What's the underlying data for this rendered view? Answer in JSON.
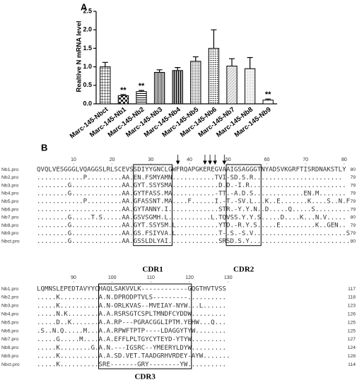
{
  "chart_data": {
    "type": "bar",
    "panel_label": "A",
    "y_label": "Realtive N mRNA level",
    "categories": [
      "Marc-145-Nbct",
      "Marc-145-Nb1",
      "Marc-145-Nb2",
      "Marc-145-Nb3",
      "Marc-145-Nb4",
      "Marc-145-Nb5",
      "Marc-145-Nb6",
      "Marc-145-Nb7",
      "Marc-145-Nb8",
      "Marc-145-Nb9"
    ],
    "values": [
      1.0,
      0.22,
      0.33,
      0.85,
      0.9,
      1.15,
      1.5,
      1.02,
      0.95,
      0.1
    ],
    "errors": [
      0.12,
      0.03,
      0.03,
      0.07,
      0.08,
      0.12,
      0.5,
      0.2,
      0.3,
      0.03
    ],
    "annotations": [
      {
        "text": "**",
        "category": "Marc-145-Nb1"
      },
      {
        "text": "**",
        "category": "Marc-145-Nb2"
      },
      {
        "text": "**",
        "category": "Marc-145-Nb9"
      }
    ],
    "ylim": [
      0,
      2.5
    ],
    "yticks": [
      {
        "value": 0,
        "label": "0.0"
      },
      {
        "value": 0.5,
        "label": "0.5"
      },
      {
        "value": 1,
        "label": "1.0"
      },
      {
        "value": 1.5,
        "label": "1.5"
      },
      {
        "value": 2,
        "label": "2.0"
      },
      {
        "value": 2.5,
        "label": "2.5"
      }
    ],
    "grid": false
  },
  "alignment": {
    "panel_label": "B",
    "blocks": [
      {
        "ruler": [
          10,
          20,
          30,
          40,
          50,
          60,
          70,
          80
        ],
        "first_column": 1,
        "rows": [
          {
            "name": "Nb1.pro",
            "sequence": "QVQLVESGGGLVQAGGSLRLSCEVSSDIYYGNCLGWFRQAPGKEREGVAAIGSAGGGTNYADSVKGRFTISRDNAKSTLY",
            "end": 80
          },
          {
            "name": "Nb2.pro",
            "sequence": "............P.........AA.EN.FSMYAMN...........TVI-SD.S.R.......................",
            "end": 79
          },
          {
            "name": "Nb3.pro",
            "sequence": "........G.............AA.GYT.SSYSMA............D.D.-I.R.........................",
            "end": 79
          },
          {
            "name": "Nb4.pro",
            "sequence": "........G.............AA.GYTFASS.MA...........-TT.-A.D.S.............EN.M.......",
            "end": 79
          },
          {
            "name": "Nb5.pro",
            "sequence": "............P.........AA.GFASSNT.MA....F......I.-T.-SV.L...K..E.......K....S..N.F",
            "end": 79
          },
          {
            "name": "Nb6.pro",
            "sequence": "......................AA.GYTANNY.I.............STR.-Y.Y.N..D.....Q.....S.........",
            "end": 79
          },
          {
            "name": "Nb7.pro",
            "sequence": "........G.....T.S.....AA.GSVSGMH.L...........L.TQVSS.Y.Y.S.....D....K...N.V.....",
            "end": 80
          },
          {
            "name": "Nb8.pro",
            "sequence": "........G.............AA.GYT.SSYSM.L...........YTD.-R.Y.S.....E.........K..GEN..",
            "end": 79
          },
          {
            "name": "Nb9.pro",
            "sequence": "........G.............AA.GS.FSIYVA.L...........T-.S.-S.V........................S",
            "end": 79
          },
          {
            "name": "Nbct.pro",
            "sequence": "........G.............AA.GSSLDLYAI.............SRSD.S.Y..........................",
            "end": 80
          }
        ],
        "cdr_labels": [
          "CDR1",
          "CDR2"
        ]
      },
      {
        "ruler": [
          90,
          100,
          110,
          120,
          130
        ],
        "first_column": 81,
        "rows": [
          {
            "name": "Nb1.pro",
            "sequence": "LQMNSLEPEDTAVYYCHAQLSAKVVLK------------GQGTHVTVSS",
            "end": 117
          },
          {
            "name": "Nb2.pro",
            "sequence": ".....K..........A.N.DPRODPTVLS---------..........",
            "end": 118
          },
          {
            "name": "Nb3.pro",
            "sequence": ".....K..........A.N-ORLKVAS--MVEIAY-NYW...L......",
            "end": 123
          },
          {
            "name": "Nb4.pro",
            "sequence": ".....N.K........A.A.RSRSGTCSPLTMNDFCYDDW.........",
            "end": 126
          },
          {
            "name": "Nb5.pro",
            "sequence": ".....D..K.......A.A.RP---PGRACGGLIPTM.YEHW...Q...",
            "end": 125
          },
          {
            "name": "Nb6.pro",
            "sequence": ".S..N.Q.....M...A.A.RPWFTPTP----LDAGGYTYW........",
            "end": 125
          },
          {
            "name": "Nb7.pro",
            "sequence": ".....G.....M....A.A.EFFLPLTGYCYTEYD-YTYW.........",
            "end": 127
          },
          {
            "name": "Nb8.pro",
            "sequence": ".....K........G.A.N.---IGSRC--YMEERYLDYW.........",
            "end": 124
          },
          {
            "name": "Nb9.pro",
            "sequence": ".....K..........A.A.SD.VET.TAADGRHVRDEY-AYW.......",
            "end": 128
          },
          {
            "name": "Nbct.pro",
            "sequence": ".....K..........SRE-------GRY--------YW..........",
            "end": 114
          }
        ],
        "cdr_labels": [
          "CDR3"
        ]
      }
    ]
  }
}
